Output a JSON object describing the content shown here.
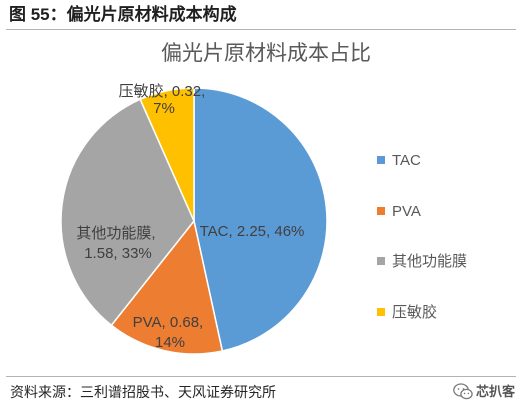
{
  "figure": {
    "title": "图 55：偏光片原材料成本构成",
    "source": "资料来源：三利谱招股书、天风证券研究所"
  },
  "chart_data": {
    "type": "pie",
    "title": "偏光片原材料成本占比",
    "categories": [
      "TAC",
      "PVA",
      "其他功能膜",
      "压敏胶"
    ],
    "values": [
      2.25,
      0.68,
      1.58,
      0.32
    ],
    "percentages": [
      46,
      14,
      33,
      7
    ],
    "data_labels": [
      [
        "TAC, 2.25, 46%"
      ],
      [
        "PVA, 0.68,",
        "14%"
      ],
      [
        "其他功能膜,",
        "1.58, 33%"
      ],
      [
        "压敏胶, 0.32,",
        "7%"
      ]
    ],
    "colors": [
      "#5B9BD5",
      "#ED7D31",
      "#A5A5A5",
      "#FFC000"
    ],
    "legend_position": "right"
  },
  "watermark": {
    "text": "芯扒客",
    "icon": "wechat-icon"
  }
}
